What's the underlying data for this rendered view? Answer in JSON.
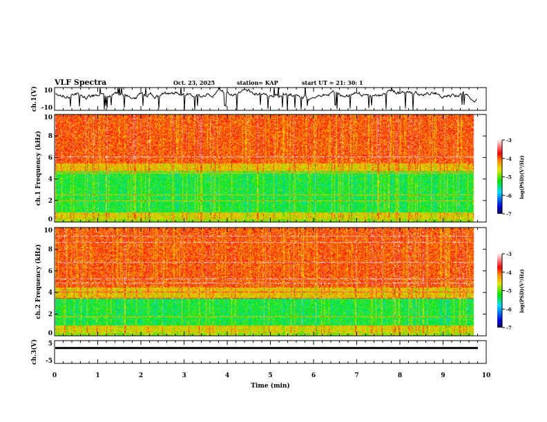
{
  "header": {
    "title": "VLF Spectra",
    "date": "Oct. 23, 2025",
    "station": "station= KAP",
    "start": "start  UT =   21: 30: 1"
  },
  "chart_data": [
    {
      "type": "line",
      "ylabel": "ch.1(V)",
      "ylim": [
        -10,
        10
      ],
      "yticks": [
        "10",
        "-10"
      ],
      "xlim": [
        0,
        10
      ],
      "data_end_min": 9.8,
      "description": "waveform amplitude, mostly 0 to 8 V with spikes"
    },
    {
      "type": "heatmap",
      "ylabel": "ch.1  Frequency  (kHz)",
      "ylim": [
        0,
        10
      ],
      "yticks": [
        "0",
        "2",
        "4",
        "6",
        "8",
        "10"
      ],
      "xlim": [
        0,
        10
      ],
      "colorbar": {
        "label": "log(PSD)(V²/Hz)",
        "range": [
          -7,
          -3
        ],
        "ticks": [
          "-3",
          "-4",
          "-5",
          "-6",
          "-7"
        ]
      }
    },
    {
      "type": "heatmap",
      "ylabel": "ch.2  Frequency  (kHz)",
      "ylim": [
        0,
        10
      ],
      "yticks": [
        "0",
        "2",
        "4",
        "6",
        "8",
        "10"
      ],
      "xlim": [
        0,
        10
      ],
      "colorbar": {
        "label": "log(PSD)(V²/Hz)",
        "range": [
          -7,
          -3
        ],
        "ticks": [
          "-3",
          "-4",
          "-5",
          "-6",
          "-7"
        ]
      }
    },
    {
      "type": "line",
      "ylabel": "ch.3(V)",
      "ylim": [
        -5,
        5
      ],
      "yticks": [
        "5",
        "-5"
      ],
      "xlim": [
        0,
        10
      ],
      "approx_value": [
        1.5,
        2
      ],
      "xlabel": "Time  (min)",
      "xticks": [
        "0",
        "1",
        "2",
        "3",
        "4",
        "5",
        "6",
        "7",
        "8",
        "9",
        "10"
      ]
    }
  ]
}
